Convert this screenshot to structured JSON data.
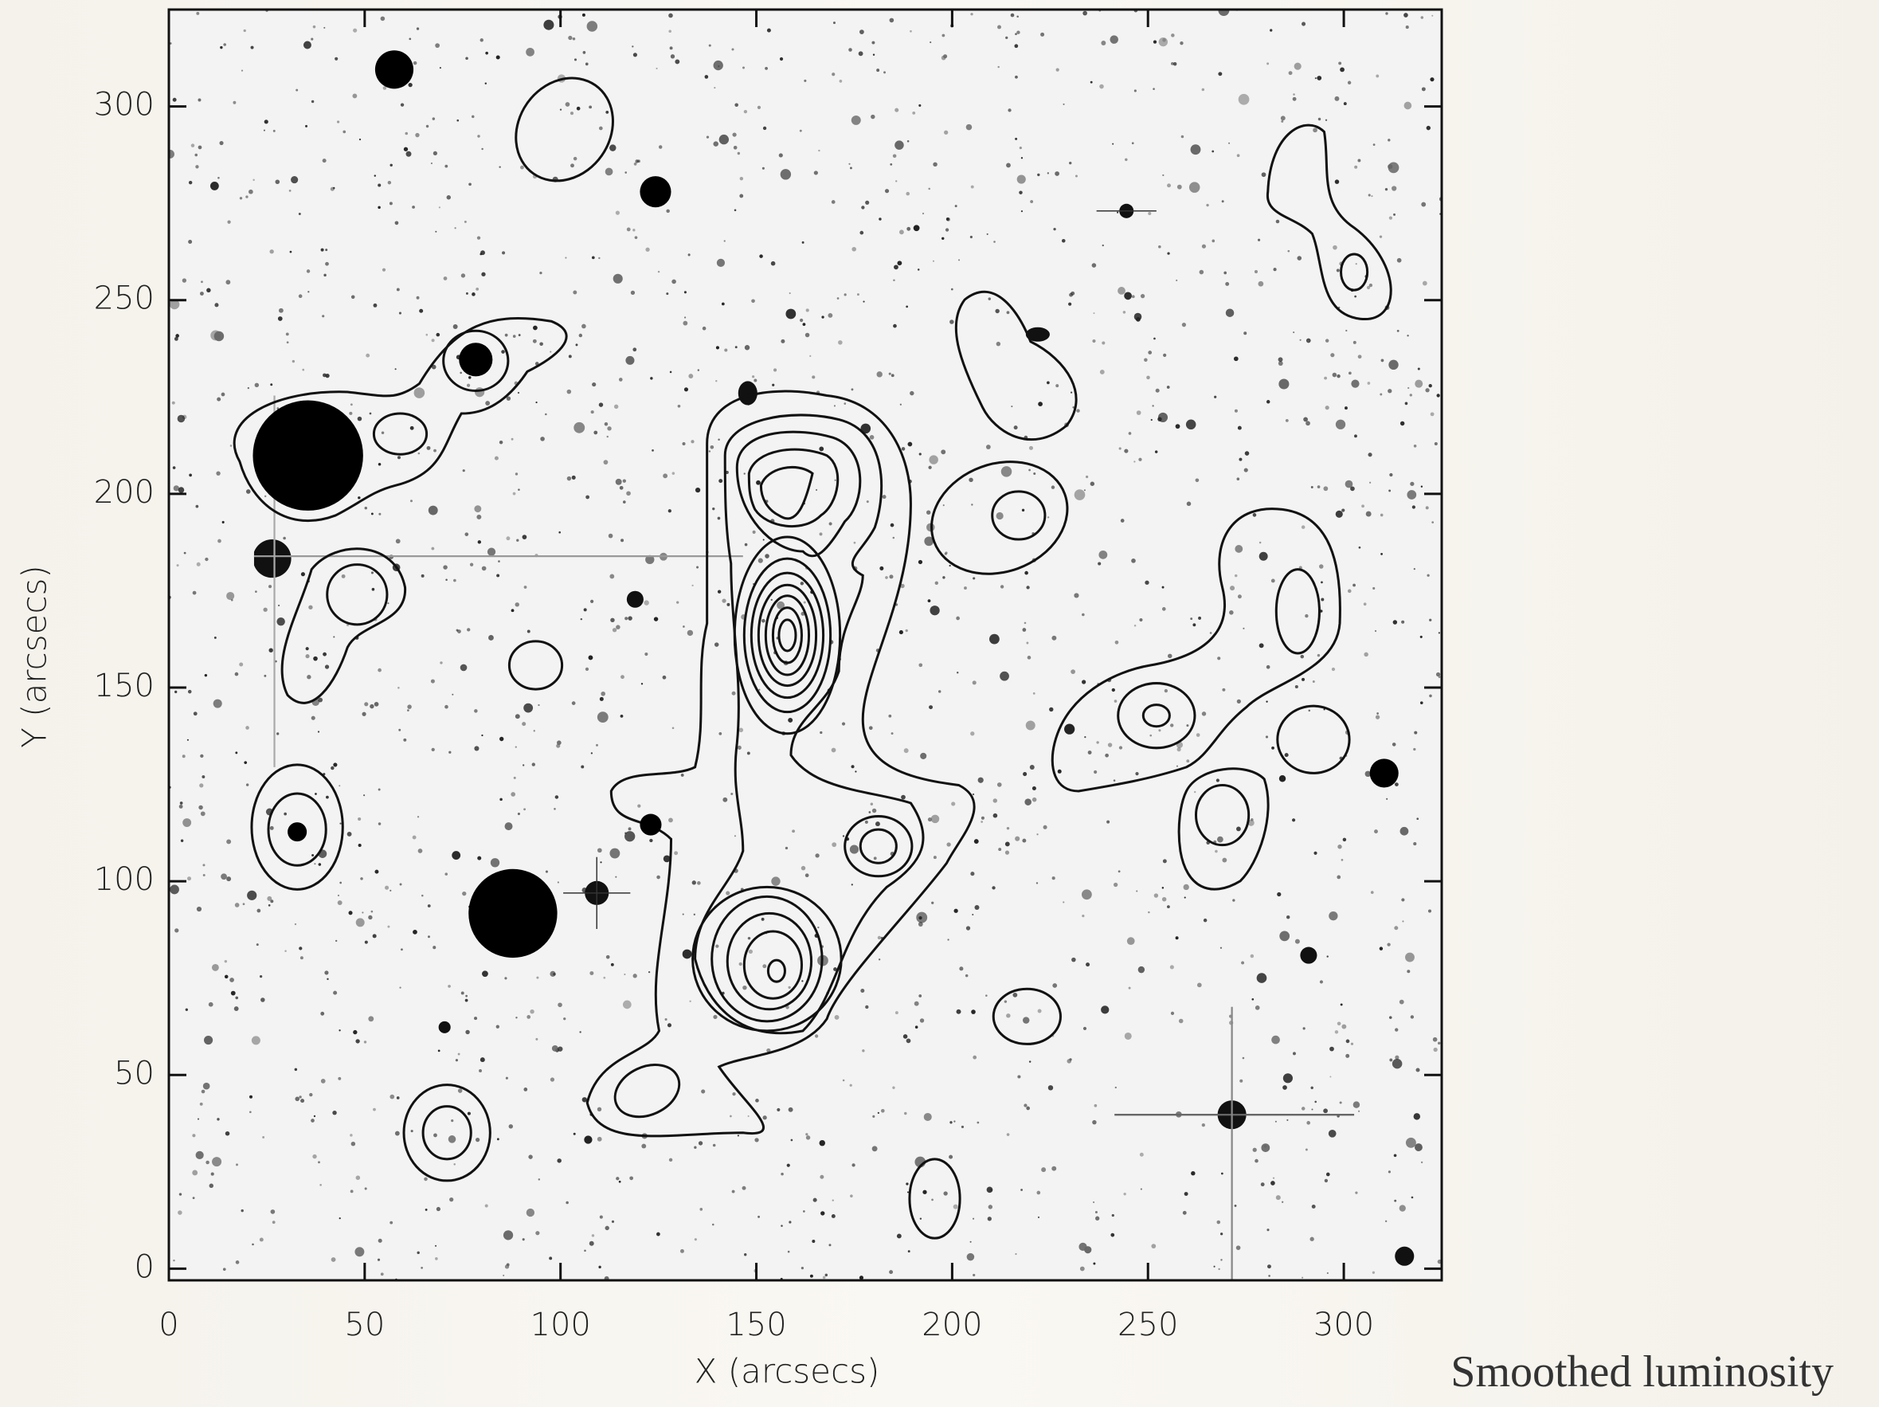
{
  "chart_data": {
    "type": "image",
    "xlabel": "X (arcsecs)",
    "ylabel": "Y (arcsecs)",
    "caption": "Smoothed luminosity",
    "xlim": [
      0,
      325
    ],
    "ylim": [
      -3,
      325
    ],
    "xticks": [
      0,
      50,
      100,
      150,
      200,
      250,
      300
    ],
    "yticks": [
      0,
      50,
      100,
      150,
      200,
      250,
      300
    ]
  }
}
